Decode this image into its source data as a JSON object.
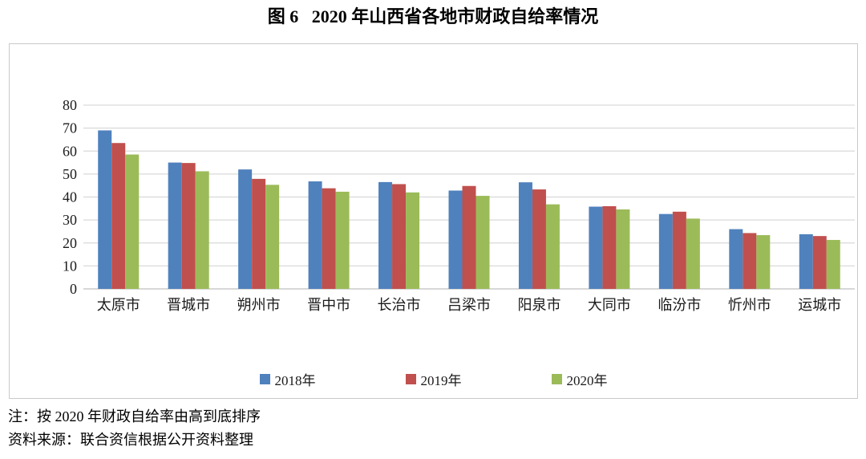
{
  "title": "图 6   2020 年山西省各地市财政自给率情况",
  "notes": [
    "注：按 2020 年财政自给率由高到底排序",
    "资料来源：联合资信根据公开资料整理"
  ],
  "colors": {
    "series_2018": "#4F81BD",
    "series_2019": "#C0504D",
    "series_2020": "#9BBB59",
    "gridline": "#d9d9d9",
    "axis_line": "#bfbfbf",
    "frame_border": "#c9c9c9",
    "text": "#1a1a1a"
  },
  "chart_data": {
    "type": "bar",
    "title": "图 6 2020 年山西省各地市财政自给率情况",
    "categories": [
      "太原市",
      "晋城市",
      "朔州市",
      "晋中市",
      "长治市",
      "吕梁市",
      "阳泉市",
      "大同市",
      "临汾市",
      "忻州市",
      "运城市"
    ],
    "series": [
      {
        "name": "2018年",
        "color": "#4F81BD",
        "values": [
          69.0,
          55.0,
          52.0,
          46.8,
          46.5,
          42.8,
          46.4,
          35.8,
          32.6,
          26.0,
          23.8
        ]
      },
      {
        "name": "2019年",
        "color": "#C0504D",
        "values": [
          63.5,
          54.8,
          47.9,
          43.8,
          45.6,
          44.8,
          43.3,
          36.0,
          33.6,
          24.3,
          23.0
        ]
      },
      {
        "name": "2020年",
        "color": "#9BBB59",
        "values": [
          58.5,
          51.2,
          45.3,
          42.3,
          42.0,
          40.5,
          36.8,
          34.6,
          30.6,
          23.4,
          21.3
        ]
      }
    ],
    "xlabel": "",
    "ylabel": "",
    "ylim": [
      0,
      80
    ],
    "ytick_step": 10,
    "grid": true,
    "legend_position": "bottom"
  }
}
